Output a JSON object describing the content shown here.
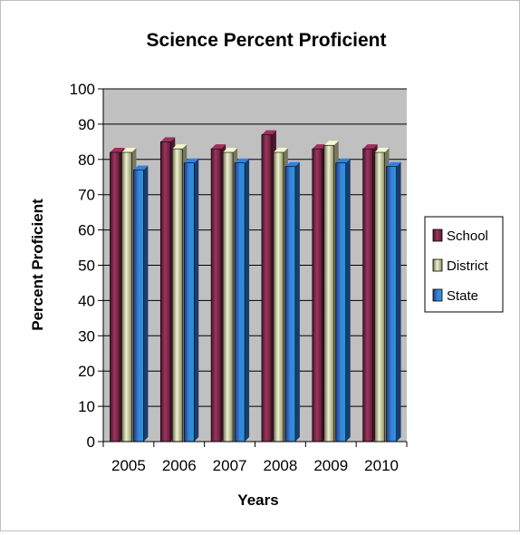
{
  "chart_data": {
    "type": "bar",
    "title": "Science Percent Proficient",
    "xlabel": "Years",
    "ylabel": "Percent Proficient",
    "categories": [
      "2005",
      "2006",
      "2007",
      "2008",
      "2009",
      "2010"
    ],
    "series": [
      {
        "name": "School",
        "values": [
          82,
          85,
          83,
          87,
          83,
          83
        ],
        "color": "#8b2a52"
      },
      {
        "name": "District",
        "values": [
          82,
          83,
          82,
          82,
          84,
          82
        ],
        "color": "#d4d8b0"
      },
      {
        "name": "State",
        "values": [
          77,
          79,
          79,
          78,
          79,
          78
        ],
        "color": "#2f6fc4"
      }
    ],
    "ylim": [
      0,
      100
    ],
    "yticks": [
      0,
      10,
      20,
      30,
      40,
      50,
      60,
      70,
      80,
      90,
      100
    ],
    "grid": true,
    "plot_background": "#c0c0c0",
    "legend_position": "right"
  }
}
